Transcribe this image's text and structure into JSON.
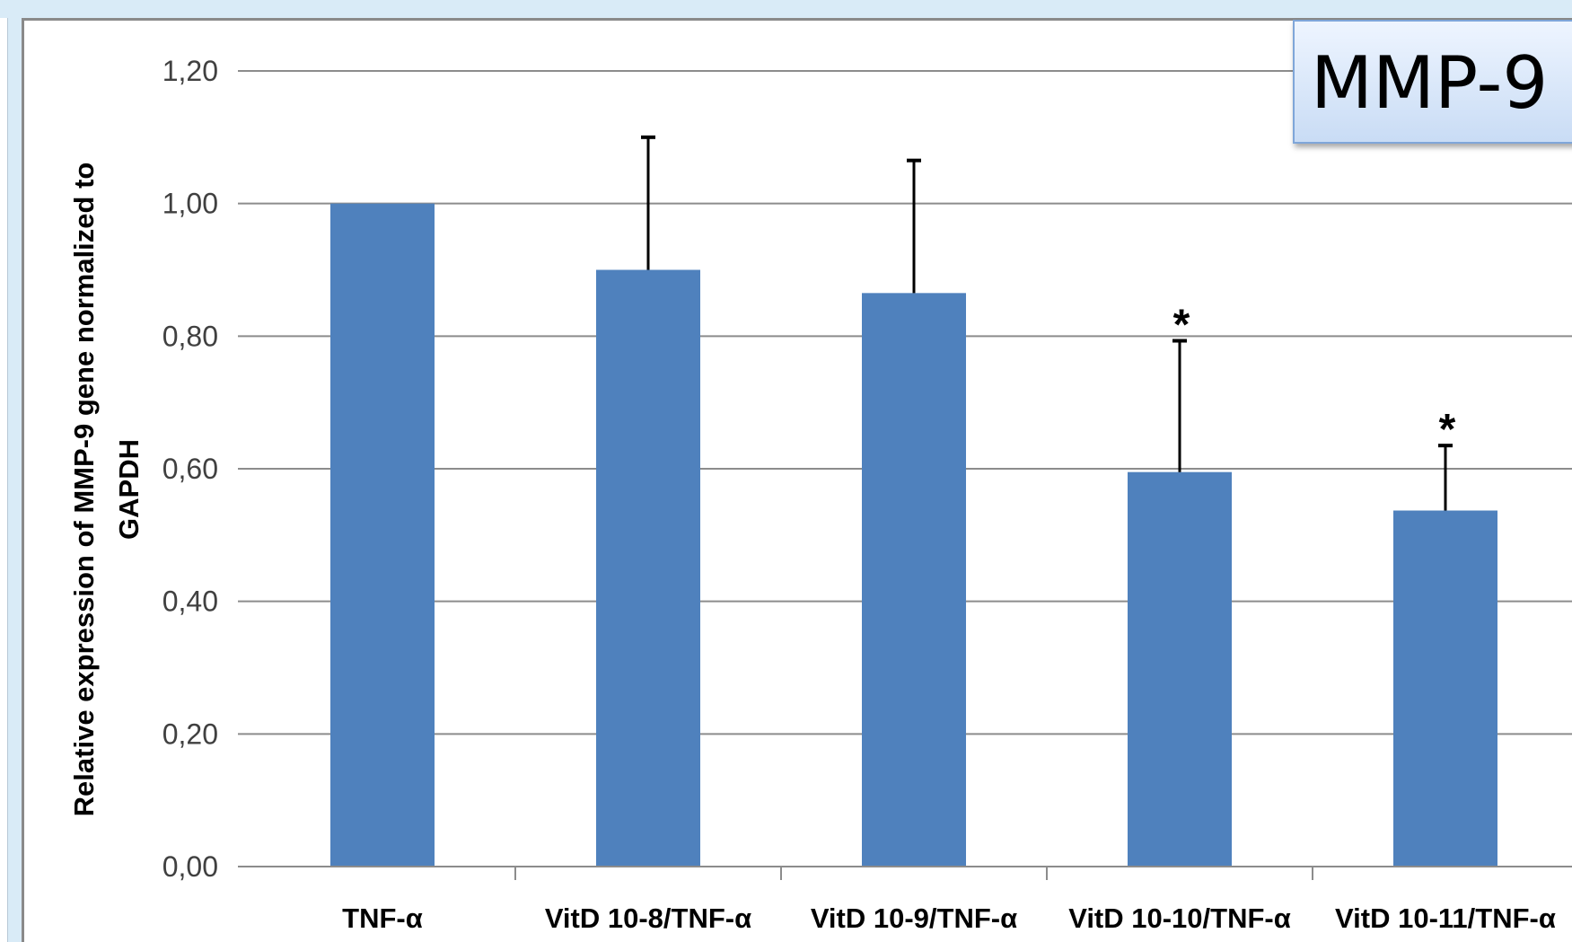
{
  "chart_data": {
    "type": "bar",
    "title": "MMP-9",
    "ylabel": [
      "Relative expression of MMP-9 gene normalized to",
      "GAPDH"
    ],
    "xlabel": "",
    "categories": [
      "TNF-α",
      "VitD 10-8/TNF-α",
      "VitD 10-9/TNF-α",
      "VitD 10-10/TNF-α",
      "VitD 10-11/TNF-α"
    ],
    "values": [
      1.0,
      0.9,
      0.865,
      0.595,
      0.537
    ],
    "error_upper": [
      null,
      1.1,
      1.065,
      0.793,
      0.635
    ],
    "significance": [
      "",
      "",
      "",
      "*",
      "*"
    ],
    "ylim": [
      0,
      1.2
    ],
    "yticks": [
      0,
      0.2,
      0.4,
      0.6,
      0.8,
      1.0,
      1.2
    ],
    "ytick_labels": [
      "0,00",
      "0,20",
      "0,40",
      "0,60",
      "0,80",
      "1,00",
      "1,20"
    ],
    "bar_color": "#4f81bd",
    "grid": true,
    "legend": "top-right"
  }
}
